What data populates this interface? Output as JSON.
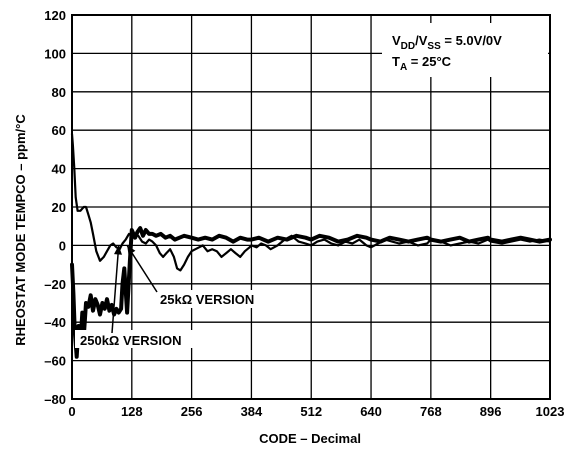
{
  "chart_data": {
    "type": "line",
    "title": "",
    "xlabel": "CODE – Decimal",
    "ylabel": "RHEOSTAT MODE TEMPCO – ppm/°C",
    "xlim": [
      0,
      1023
    ],
    "ylim": [
      -80,
      120
    ],
    "x_ticks": [
      0,
      128,
      256,
      384,
      512,
      640,
      768,
      896,
      1023
    ],
    "y_ticks": [
      -80,
      -60,
      -40,
      -20,
      0,
      20,
      40,
      60,
      80,
      100,
      120
    ],
    "x_ticklabels": [
      "0",
      "128",
      "256",
      "384",
      "512",
      "640",
      "768",
      "896",
      "1023"
    ],
    "y_ticklabels": [
      "–80",
      "–60",
      "–40",
      "–20",
      "0",
      "20",
      "40",
      "60",
      "80",
      "100",
      "120"
    ],
    "grid": true,
    "conditions": {
      "line1": {
        "a": "V",
        "a_sub": "DD",
        "b": "/V",
        "b_sub": "SS",
        "c": " = 5.0V/0V"
      },
      "line2": {
        "a": "T",
        "a_sub": "A",
        "c": " = 25°C"
      }
    },
    "annotations": [
      {
        "text": "25kΩ VERSION",
        "series": "25kΩ VERSION",
        "arrow_to": [
          118,
          0
        ]
      },
      {
        "text": "250kΩ VERSION",
        "series": "250kΩ VERSION",
        "arrow_to": [
          100,
          0
        ]
      }
    ],
    "series": [
      {
        "name": "25kΩ VERSION",
        "color": "#000000",
        "x": [
          0,
          2,
          5,
          8,
          12,
          18,
          25,
          30,
          35,
          40,
          45,
          52,
          60,
          68,
          75,
          82,
          88,
          95,
          102,
          108,
          115,
          122,
          128,
          135,
          142,
          150,
          158,
          165,
          172,
          180,
          188,
          195,
          202,
          210,
          218,
          225,
          232,
          240,
          248,
          256,
          264,
          272,
          280,
          290,
          300,
          310,
          320,
          330,
          340,
          350,
          360,
          370,
          380,
          384,
          395,
          405,
          415,
          425,
          440,
          455,
          470,
          485,
          500,
          512,
          525,
          540,
          555,
          570,
          585,
          600,
          615,
          630,
          640,
          655,
          670,
          685,
          700,
          720,
          740,
          760,
          768,
          790,
          810,
          830,
          850,
          870,
          890,
          896,
          920,
          940,
          960,
          980,
          1000,
          1023
        ],
        "y": [
          58,
          52,
          40,
          25,
          18,
          18,
          20,
          20,
          16,
          12,
          6,
          -3,
          -8,
          -6,
          -3,
          0,
          1,
          -1,
          -2,
          1,
          3,
          6,
          5,
          6,
          5,
          2,
          1,
          3,
          2,
          0,
          -4,
          -6,
          -4,
          -2,
          -6,
          -12,
          -13,
          -10,
          -6,
          -3,
          -2,
          -1,
          0,
          -3,
          -2,
          -3,
          -6,
          -4,
          -2,
          -4,
          -6,
          -3,
          -1,
          0,
          -1,
          1,
          0,
          -2,
          0,
          3,
          5,
          2,
          1,
          0,
          2,
          3,
          1,
          0,
          2,
          1,
          3,
          0,
          -1,
          1,
          3,
          2,
          1,
          2,
          0,
          1,
          3,
          2,
          0,
          1,
          2,
          1,
          3,
          2,
          1,
          2,
          3,
          2,
          3,
          2
        ]
      },
      {
        "name": "250kΩ VERSION",
        "color": "#000000",
        "x": [
          0,
          3,
          6,
          10,
          14,
          18,
          22,
          26,
          30,
          35,
          40,
          45,
          50,
          55,
          60,
          65,
          70,
          75,
          80,
          85,
          90,
          95,
          100,
          105,
          108,
          112,
          118,
          124,
          128,
          135,
          140,
          146,
          152,
          158,
          165,
          172,
          180,
          190,
          200,
          210,
          220,
          230,
          240,
          256,
          270,
          285,
          300,
          315,
          330,
          345,
          360,
          375,
          384,
          400,
          420,
          440,
          460,
          480,
          500,
          512,
          530,
          550,
          570,
          590,
          610,
          630,
          640,
          660,
          680,
          700,
          720,
          740,
          760,
          768,
          790,
          810,
          830,
          850,
          870,
          890,
          896,
          920,
          940,
          960,
          980,
          1000,
          1023
        ],
        "y": [
          -10,
          -25,
          -45,
          -58,
          -42,
          -52,
          -35,
          -45,
          -30,
          -32,
          -26,
          -34,
          -28,
          -31,
          -36,
          -30,
          -33,
          -28,
          -34,
          -31,
          -36,
          -33,
          -35,
          -33,
          -20,
          -12,
          -35,
          -8,
          8,
          4,
          7,
          9,
          5,
          8,
          6,
          6,
          5,
          6,
          4,
          5,
          3,
          4,
          5,
          4,
          3,
          4,
          3,
          5,
          4,
          2,
          4,
          3,
          3,
          4,
          2,
          4,
          3,
          5,
          4,
          3,
          5,
          4,
          2,
          3,
          5,
          4,
          3,
          2,
          4,
          3,
          2,
          3,
          4,
          3,
          2,
          3,
          4,
          2,
          3,
          4,
          3,
          2,
          3,
          4,
          3,
          2,
          3
        ]
      }
    ]
  }
}
